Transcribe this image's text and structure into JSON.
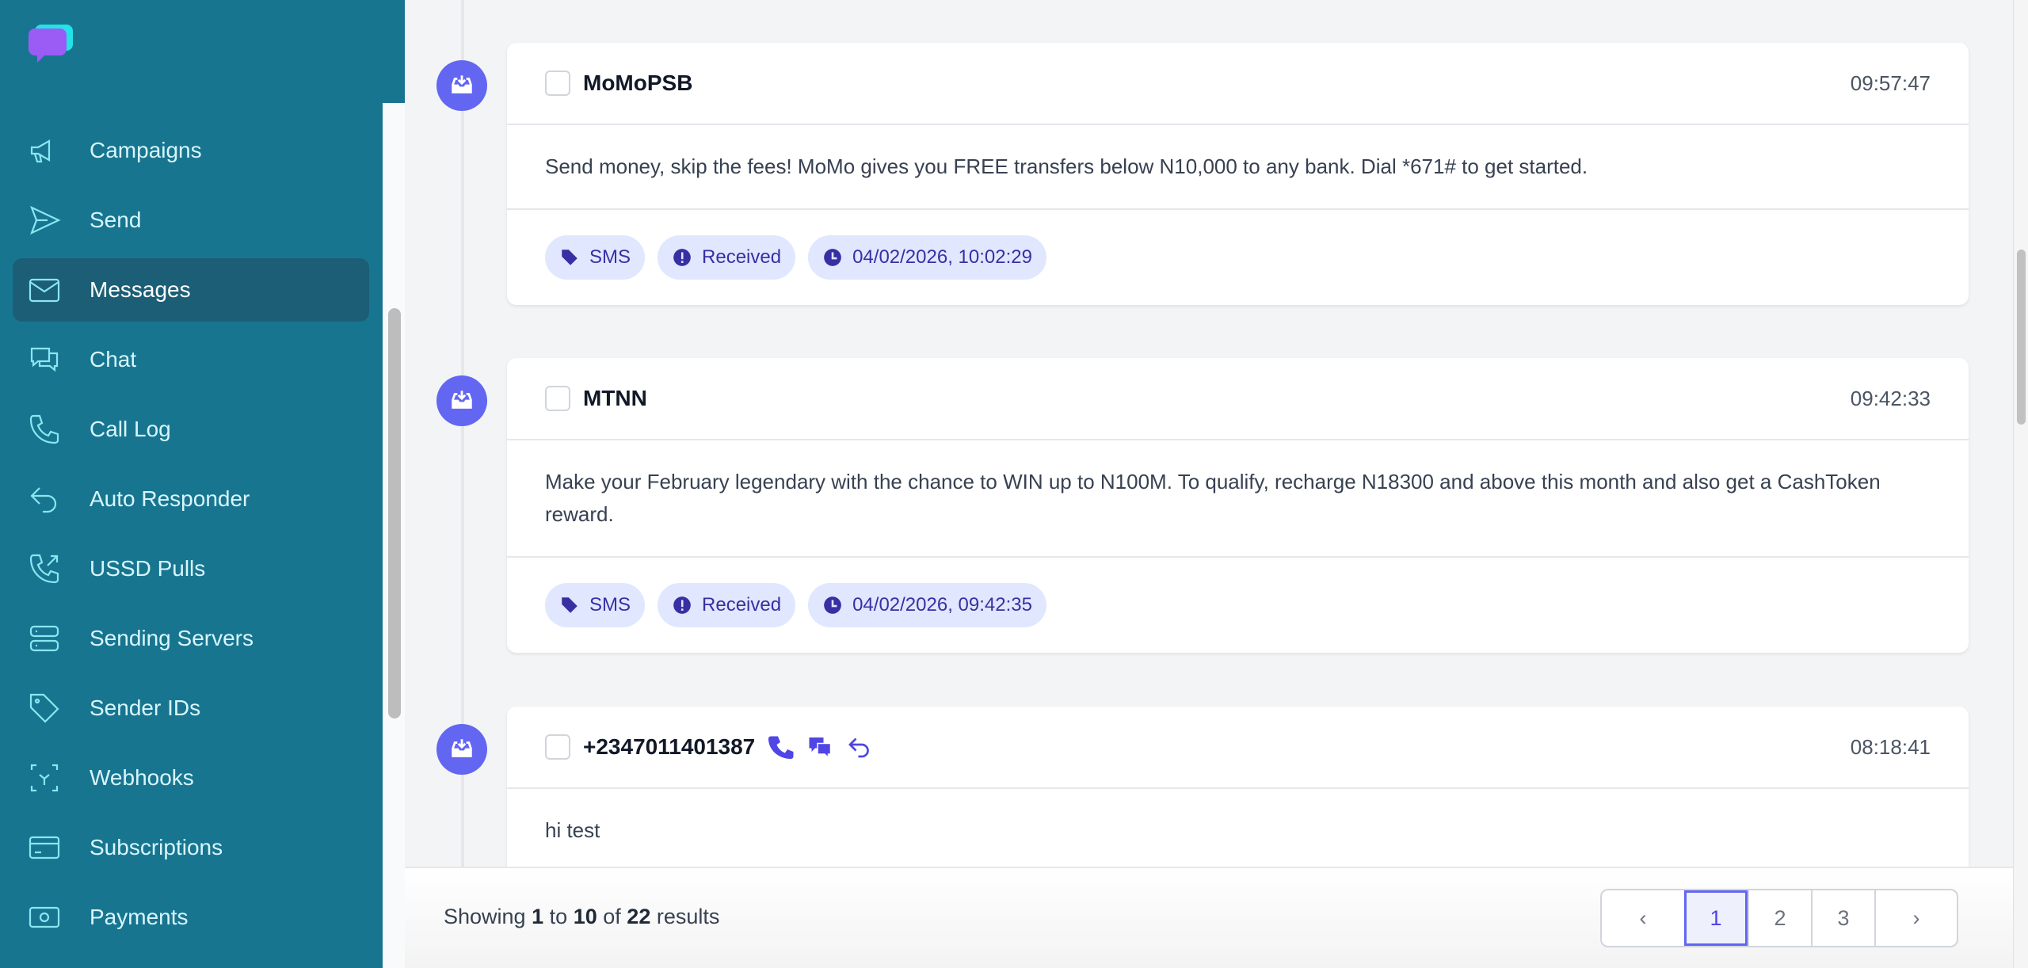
{
  "app": {
    "brand_colors": {
      "sidebar": "#187590",
      "accent": "#6366f1",
      "logo_front": "#9b5cf6",
      "logo_back": "#22e3e6"
    }
  },
  "sidebar": {
    "items": [
      {
        "label": "Campaigns",
        "icon": "megaphone-icon"
      },
      {
        "label": "Send",
        "icon": "paper-plane-icon"
      },
      {
        "label": "Messages",
        "icon": "envelope-icon",
        "active": true
      },
      {
        "label": "Chat",
        "icon": "chat-bubbles-icon"
      },
      {
        "label": "Call Log",
        "icon": "phone-icon"
      },
      {
        "label": "Auto Responder",
        "icon": "reply-icon"
      },
      {
        "label": "USSD Pulls",
        "icon": "phone-outgoing-icon"
      },
      {
        "label": "Sending Servers",
        "icon": "server-icon"
      },
      {
        "label": "Sender IDs",
        "icon": "tag-icon"
      },
      {
        "label": "Webhooks",
        "icon": "webhook-icon"
      },
      {
        "label": "Subscriptions",
        "icon": "credit-card-icon"
      },
      {
        "label": "Payments",
        "icon": "banknote-icon"
      }
    ]
  },
  "messages": [
    {
      "sender": "MoMoPSB",
      "time": "09:57:47",
      "body": "Send money, skip the fees! MoMo gives you FREE transfers below N10,000 to any bank. Dial *671# to get started.",
      "type": "SMS",
      "status": "Received",
      "datetime": "04/02/2026, 10:02:29"
    },
    {
      "sender": "MTNN",
      "time": "09:42:33",
      "body": "Make your February legendary with the chance to WIN up to N100M. To qualify, recharge N18300 and above this month and also get a CashToken reward.",
      "type": "SMS",
      "status": "Received",
      "datetime": "04/02/2026, 09:42:35"
    },
    {
      "sender": "+2347011401387",
      "time": "08:18:41",
      "body": "hi test",
      "actions": [
        "phone-icon",
        "chat-icon",
        "reply-icon"
      ]
    }
  ],
  "pagination": {
    "showing": "Showing",
    "from": "1",
    "to_word": "to",
    "to": "10",
    "of_word": "of",
    "total": "22",
    "results": "results",
    "pages": [
      "1",
      "2",
      "3"
    ],
    "current": "1",
    "prev": "‹",
    "next": "›"
  }
}
